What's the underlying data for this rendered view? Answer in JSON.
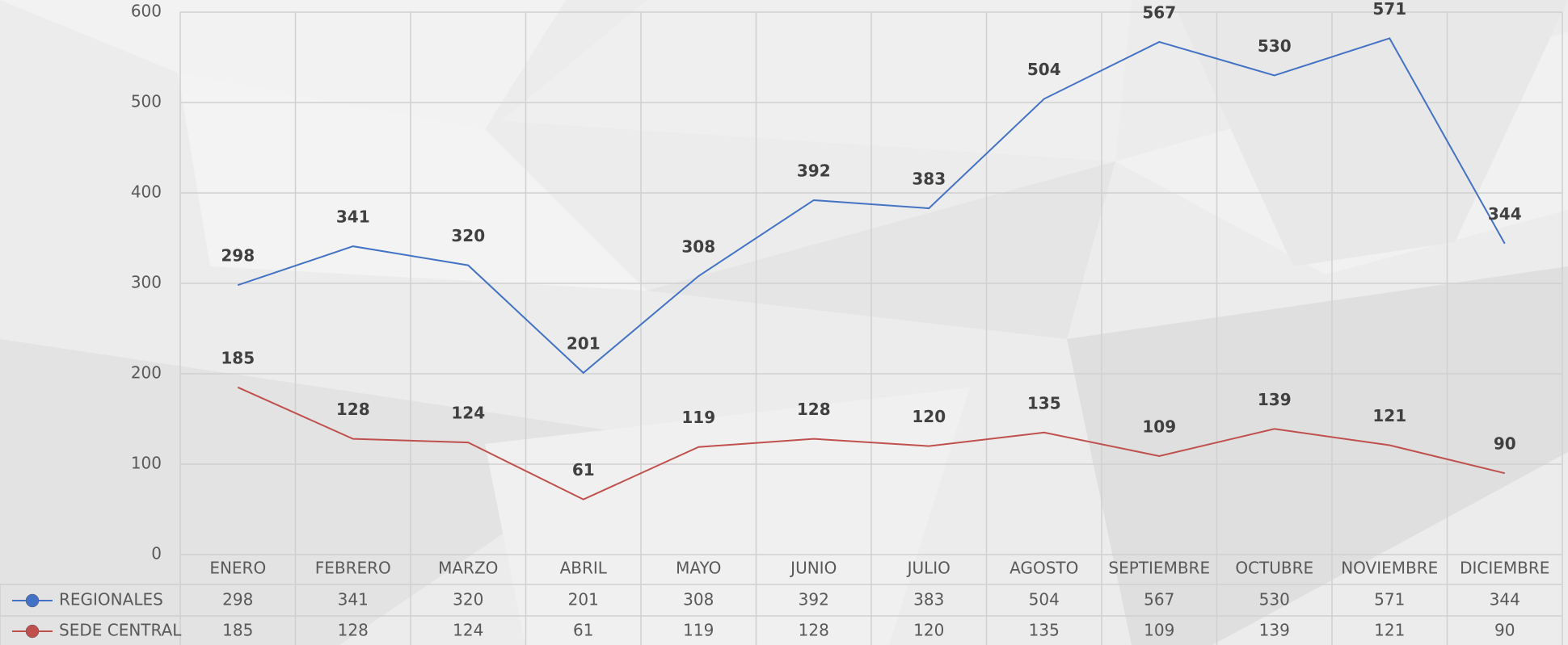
{
  "chart_data": {
    "type": "line",
    "categories": [
      "ENERO",
      "FEBRERO",
      "MARZO",
      "ABRIL",
      "MAYO",
      "JUNIO",
      "JULIO",
      "AGOSTO",
      "SEPTIEMBRE",
      "OCTUBRE",
      "NOVIEMBRE",
      "DICIEMBRE"
    ],
    "series": [
      {
        "name": "REGIONALES",
        "color": "#4472c4",
        "values": [
          298,
          341,
          320,
          201,
          308,
          392,
          383,
          504,
          567,
          530,
          571,
          344
        ]
      },
      {
        "name": "SEDE CENTRAL",
        "color": "#c0504d",
        "values": [
          185,
          128,
          124,
          61,
          119,
          128,
          120,
          135,
          109,
          139,
          121,
          90
        ]
      }
    ],
    "ylim": [
      0,
      600
    ],
    "yticks": [
      0,
      100,
      200,
      300,
      400,
      500,
      600
    ],
    "grid": true,
    "data_table": true
  }
}
